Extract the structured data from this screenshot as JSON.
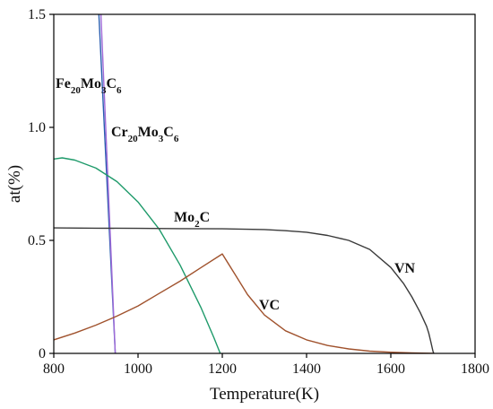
{
  "chart_data": {
    "type": "line",
    "title": "",
    "xlabel": "Temperature(K)",
    "ylabel": "at(%)",
    "xlim": [
      800,
      1800
    ],
    "ylim": [
      0,
      1.5
    ],
    "xticks": [
      800,
      1000,
      1200,
      1400,
      1600,
      1800
    ],
    "yticks": [
      0,
      0.5,
      1.0,
      1.5
    ],
    "ytick_labels": [
      "0",
      "0.5",
      "1.0",
      "1.5"
    ],
    "grid": false,
    "legend": "none",
    "series": [
      {
        "label_base": "Fe",
        "label_sub1": "20",
        "label_mid": "Mo",
        "label_sub2": "3",
        "label_end": "C",
        "label_sub3": "6",
        "color": "#2a5db0",
        "x": [
          907,
          946
        ],
        "y": [
          1.5,
          0
        ]
      },
      {
        "label_base": "Cr",
        "label_sub1": "20",
        "label_mid": "Mo",
        "label_sub2": "3",
        "label_end": "C",
        "label_sub3": "6",
        "color": "#a06ad8",
        "x": [
          912,
          946
        ],
        "y": [
          1.5,
          0
        ]
      },
      {
        "label_base": "Mo",
        "label_sub1": "2",
        "label_mid": "C",
        "color": "#1e9a6a",
        "x": [
          800,
          820,
          850,
          900,
          950,
          1000,
          1050,
          1100,
          1150,
          1180,
          1195
        ],
        "y": [
          0.86,
          0.865,
          0.855,
          0.82,
          0.76,
          0.67,
          0.55,
          0.39,
          0.2,
          0.07,
          0
        ]
      },
      {
        "label_base": "VC",
        "color": "#a0522d",
        "x": [
          800,
          850,
          900,
          950,
          1000,
          1050,
          1100,
          1150,
          1200,
          1230,
          1260,
          1300,
          1350,
          1400,
          1450,
          1500,
          1550,
          1600,
          1650,
          1700
        ],
        "y": [
          0.06,
          0.09,
          0.125,
          0.165,
          0.21,
          0.265,
          0.32,
          0.38,
          0.44,
          0.35,
          0.26,
          0.17,
          0.1,
          0.06,
          0.035,
          0.02,
          0.01,
          0.005,
          0.002,
          0
        ]
      },
      {
        "label_base": "VN",
        "color": "#3a3a3a",
        "x": [
          800,
          900,
          1000,
          1100,
          1200,
          1300,
          1350,
          1400,
          1450,
          1500,
          1550,
          1600,
          1630,
          1650,
          1670,
          1685,
          1690,
          1695,
          1700,
          1702
        ],
        "y": [
          0.555,
          0.554,
          0.553,
          0.552,
          0.551,
          0.548,
          0.543,
          0.536,
          0.522,
          0.5,
          0.46,
          0.38,
          0.31,
          0.25,
          0.18,
          0.12,
          0.09,
          0.05,
          0.01,
          0
        ]
      }
    ]
  }
}
